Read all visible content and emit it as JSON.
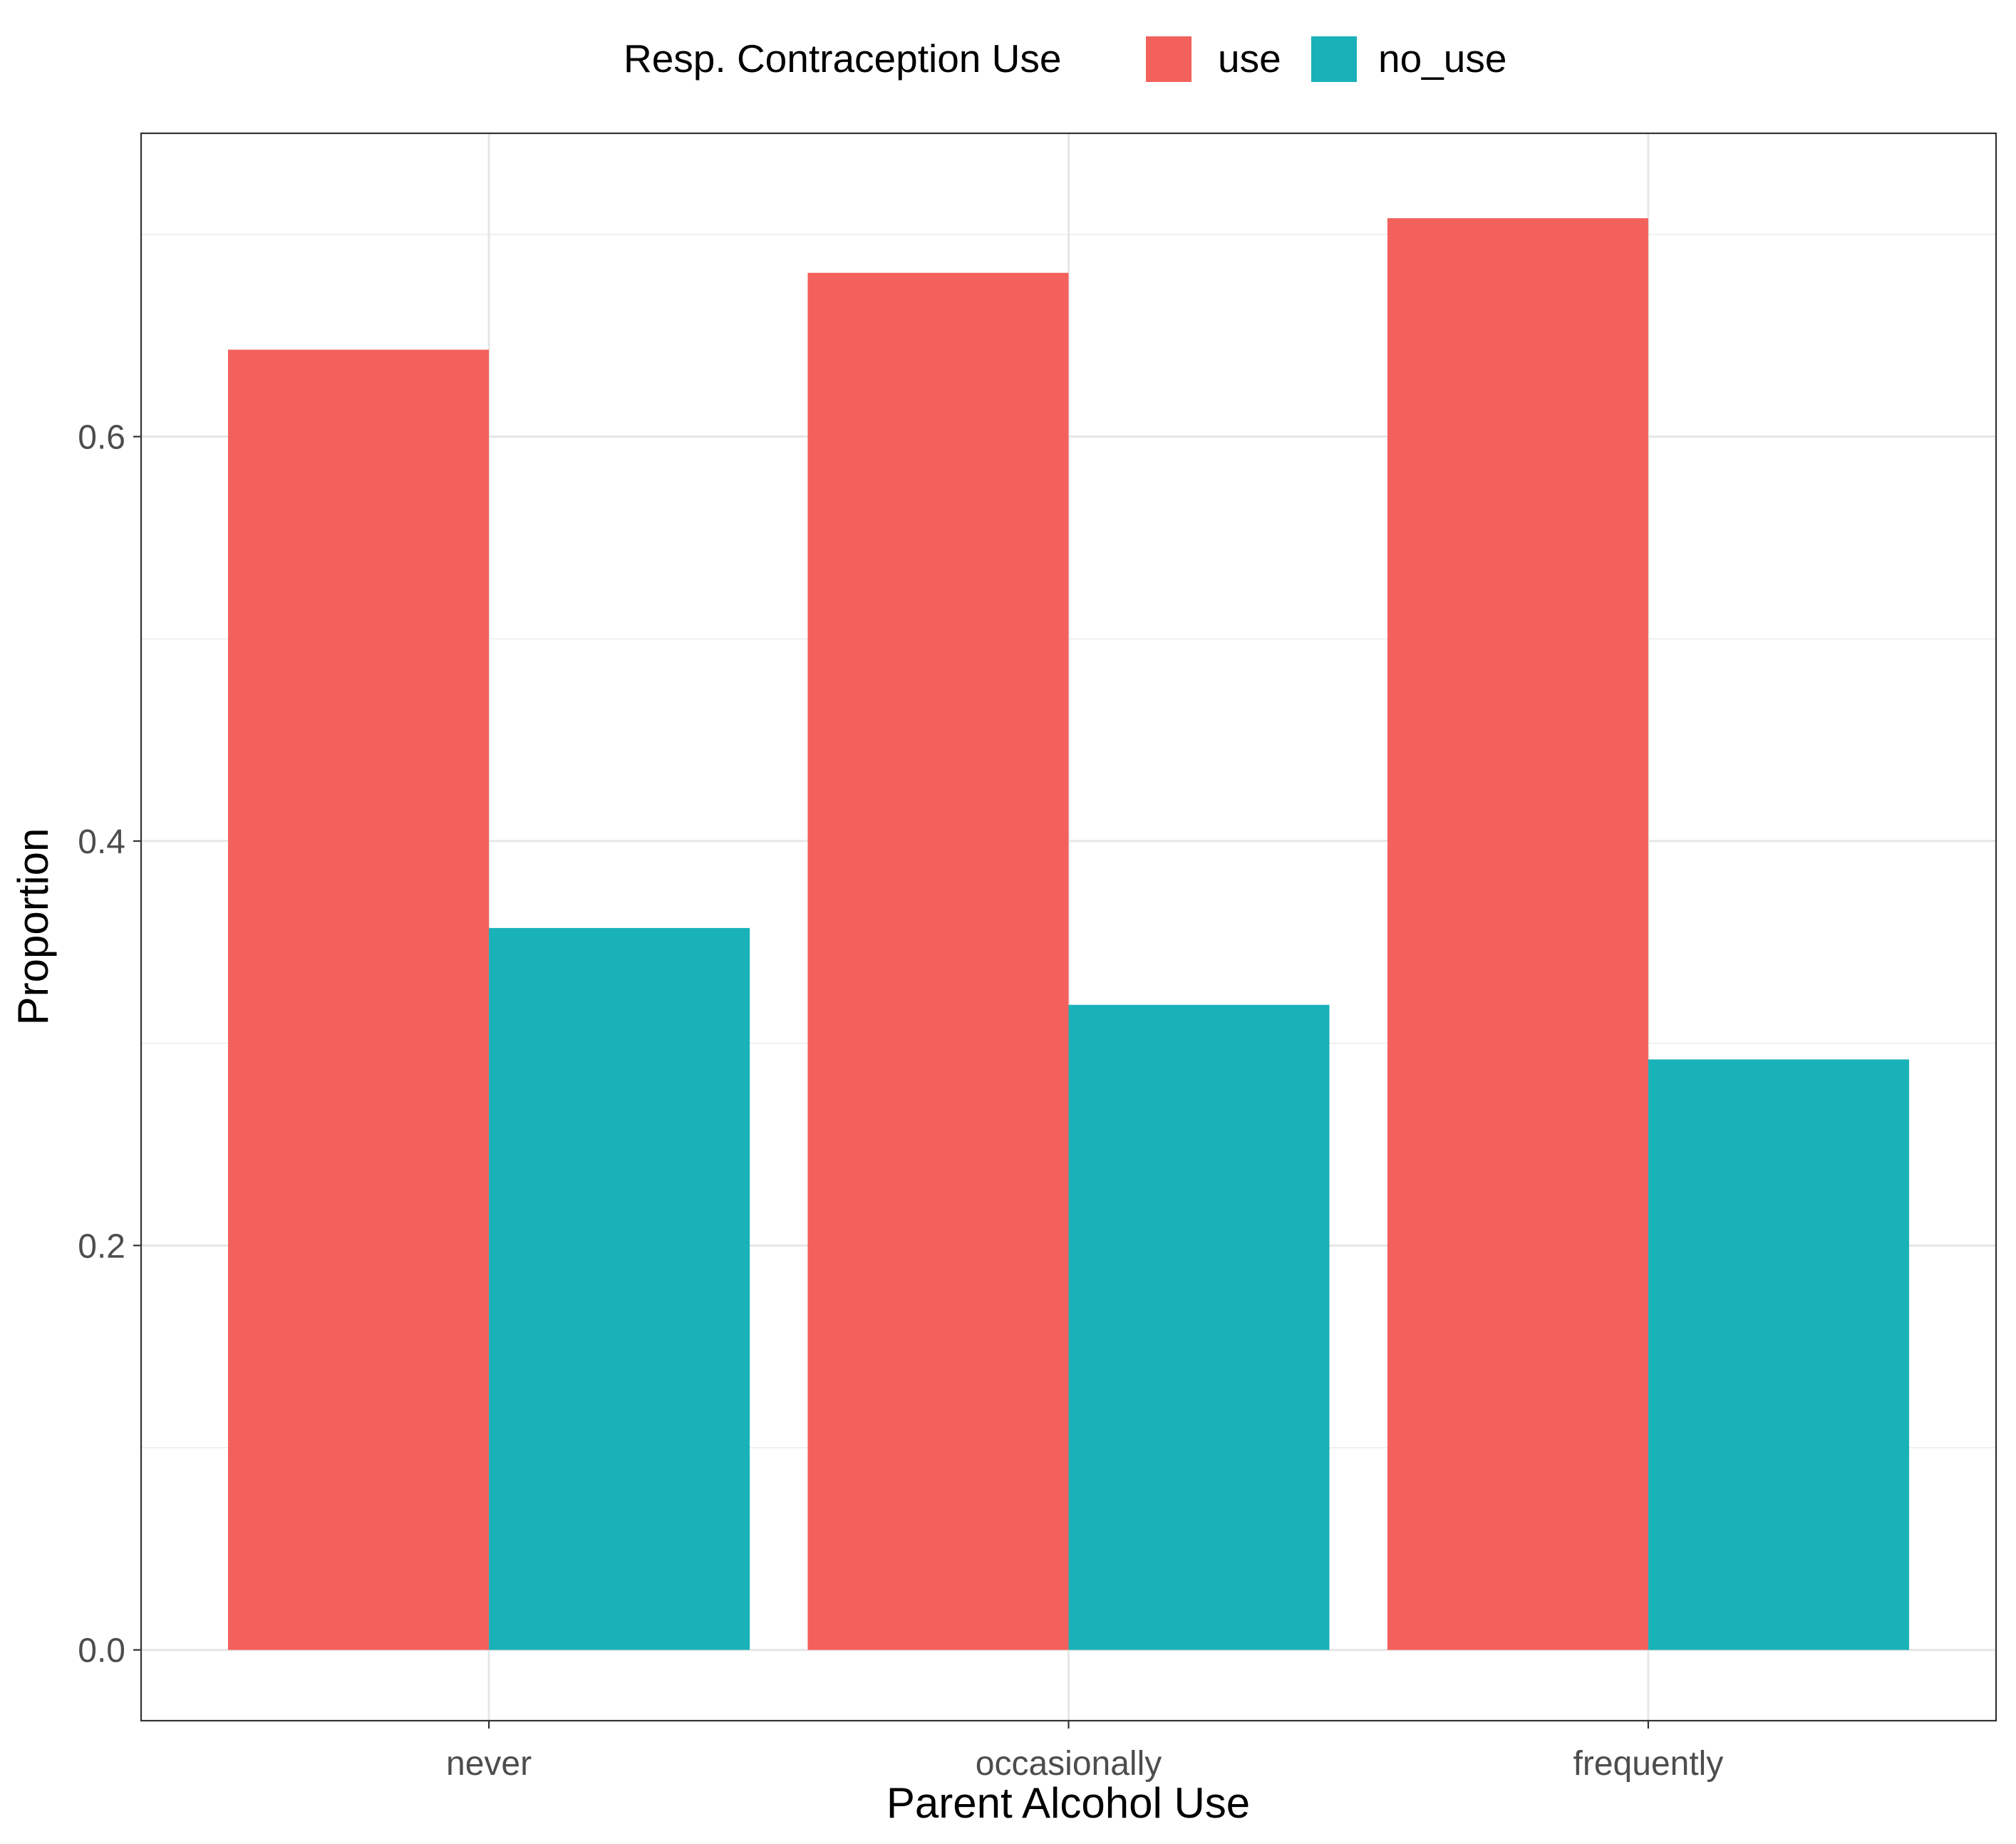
{
  "chart_data": {
    "type": "bar",
    "categories": [
      "never",
      "occasionally",
      "frequently"
    ],
    "series": [
      {
        "name": "use",
        "values": [
          0.643,
          0.681,
          0.708
        ],
        "color": "#F3615C"
      },
      {
        "name": "no_use",
        "values": [
          0.357,
          0.319,
          0.292
        ],
        "color": "#19B2B8"
      }
    ],
    "title": "",
    "xlabel": "Parent Alcohol Use",
    "ylabel": "Proportion",
    "ylim": [
      -0.035,
      0.75
    ],
    "yticks": [
      0.0,
      0.2,
      0.4,
      0.6
    ],
    "ytick_labels": [
      "0.0",
      "0.2",
      "0.4",
      "0.6"
    ],
    "grid": true,
    "legend": {
      "title": "Resp. Contraception Use",
      "position": "top",
      "entries": [
        "use",
        "no_use"
      ]
    }
  }
}
